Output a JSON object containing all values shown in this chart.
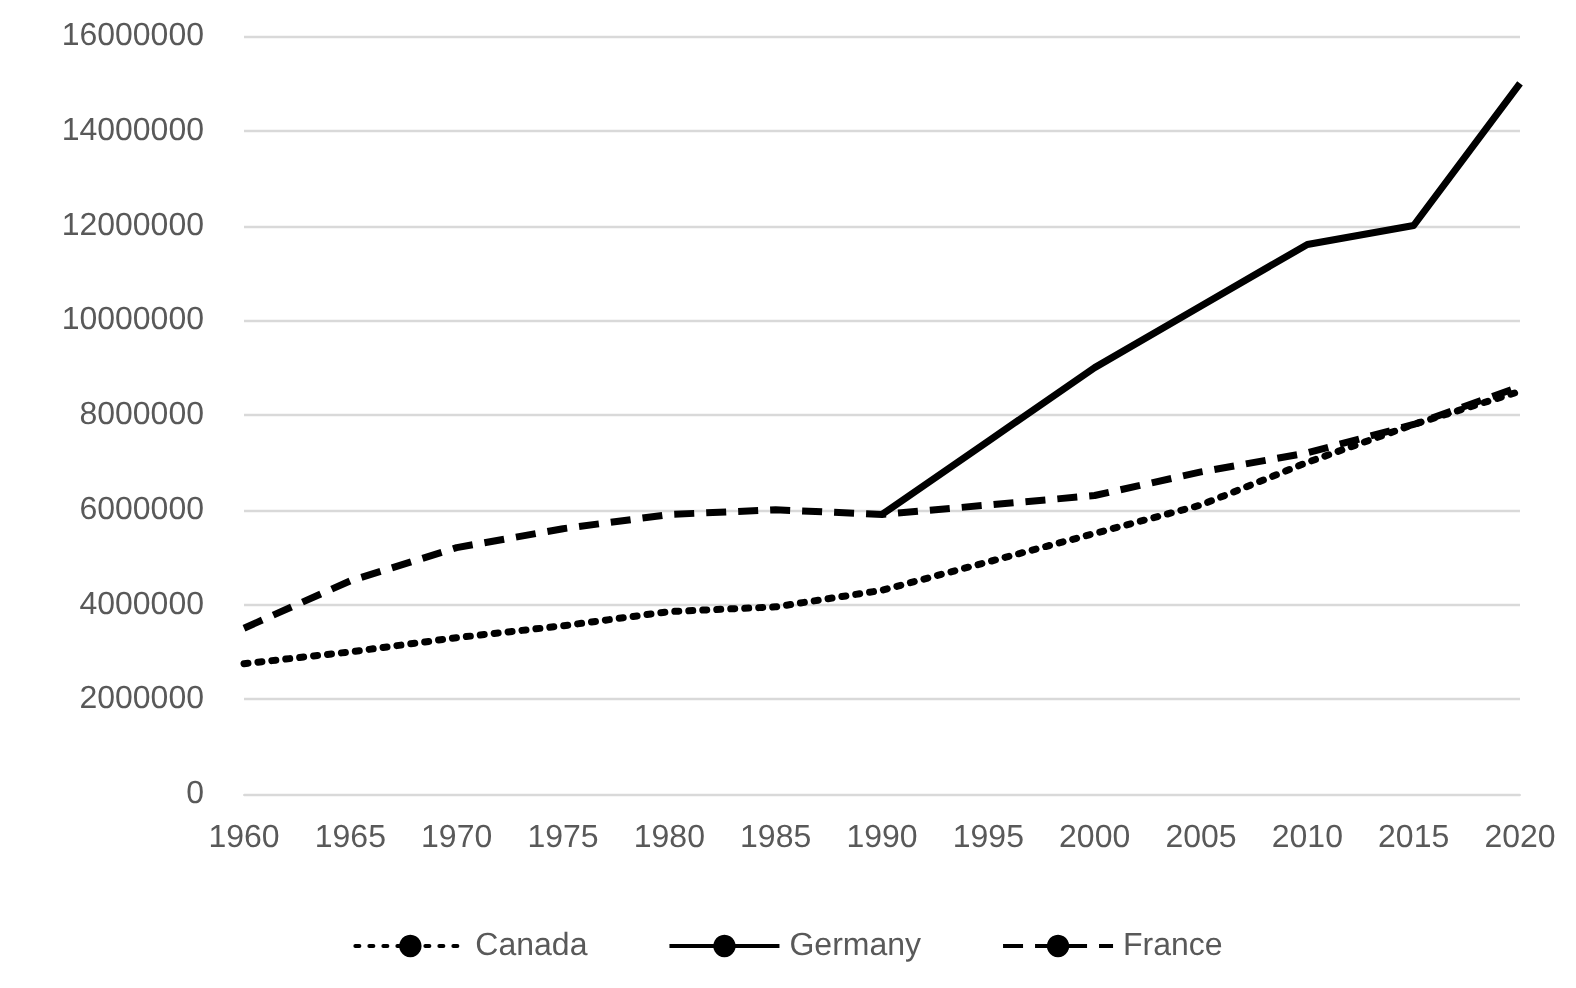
{
  "chart_data": {
    "type": "line",
    "categories": [
      "1960",
      "1965",
      "1970",
      "1975",
      "1980",
      "1985",
      "1990",
      "1995",
      "2000",
      "2005",
      "2010",
      "2015",
      "2020"
    ],
    "series": [
      {
        "name": "Canada",
        "color": "#000000",
        "line_style": "dotted",
        "values": [
          2750000,
          3000000,
          3300000,
          3550000,
          3850000,
          3950000,
          4300000,
          4900000,
          5500000,
          6100000,
          7000000,
          7800000,
          8500000
        ]
      },
      {
        "name": "Germany",
        "color": "#000000",
        "line_style": "solid",
        "values": [
          null,
          null,
          null,
          null,
          null,
          null,
          5900000,
          7450000,
          9000000,
          10300000,
          11600000,
          12000000,
          15000000
        ]
      },
      {
        "name": "France",
        "color": "#000000",
        "line_style": "dashed",
        "values": [
          3500000,
          4500000,
          5200000,
          5600000,
          5900000,
          6000000,
          5900000,
          6100000,
          6300000,
          6800000,
          7200000,
          7800000,
          8600000
        ]
      }
    ],
    "ylim": [
      0,
      16000000
    ],
    "yticks": [
      0,
      2000000,
      4000000,
      6000000,
      8000000,
      10000000,
      12000000,
      14000000,
      16000000
    ],
    "grid": "y",
    "legend": "bottom",
    "marker": "none"
  }
}
